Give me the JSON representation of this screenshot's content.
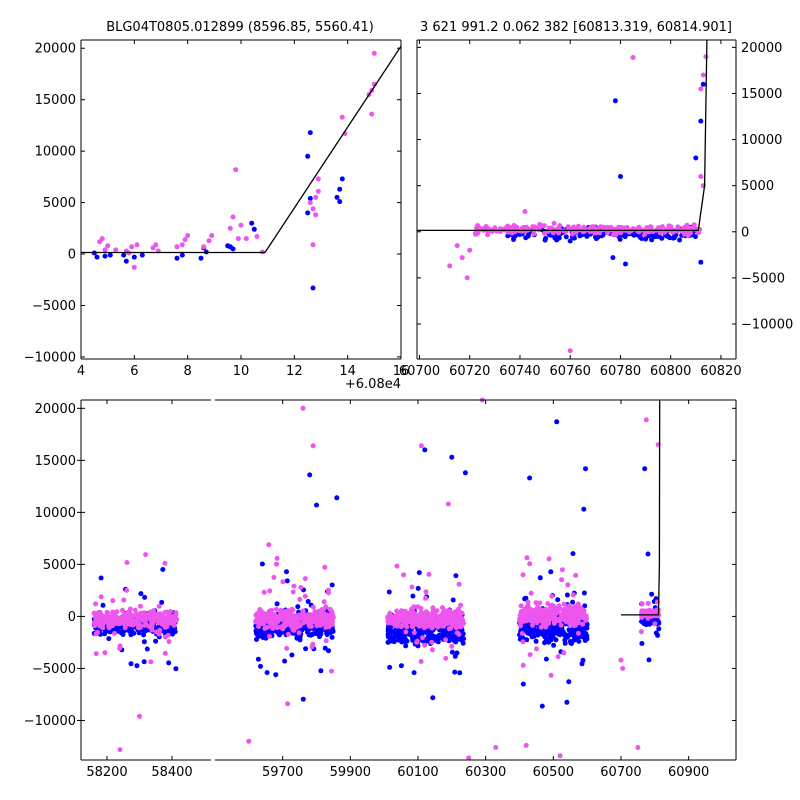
{
  "chart_data": [
    {
      "type": "scatter",
      "title": "BLG04T0805.012899 (8596.85, 5560.41)",
      "offset_label": "+6.08e4",
      "xlim": [
        4,
        16
      ],
      "ylim": [
        -10200,
        20800
      ],
      "xticks": [
        4,
        6,
        8,
        10,
        12,
        14,
        16
      ],
      "xtick_labels": [
        "4",
        "6",
        "8",
        "10",
        "12",
        "14",
        "16"
      ],
      "yticks": [
        -10000,
        -5000,
        0,
        5000,
        10000,
        15000,
        20000
      ],
      "ytick_labels": [
        "−10000",
        "−5000",
        "0",
        "5000",
        "10000",
        "15000",
        "20000"
      ],
      "model_line": {
        "x": [
          4,
          10.9,
          16
        ],
        "y": [
          150,
          150,
          20200
        ]
      },
      "series": [
        {
          "name": "blue",
          "color": "#0000ff",
          "points": [
            [
              4.5,
              100
            ],
            [
              4.6,
              -300
            ],
            [
              4.9,
              -200
            ],
            [
              5.1,
              -100
            ],
            [
              5.6,
              -100
            ],
            [
              5.7,
              -700
            ],
            [
              6.0,
              -300
            ],
            [
              6.3,
              -100
            ],
            [
              7.6,
              -400
            ],
            [
              7.8,
              -100
            ],
            [
              8.5,
              -400
            ],
            [
              8.6,
              600
            ],
            [
              8.7,
              200
            ],
            [
              9.5,
              800
            ],
            [
              9.6,
              700
            ],
            [
              9.7,
              500
            ],
            [
              10.4,
              3000
            ],
            [
              10.5,
              2400
            ],
            [
              12.5,
              4000
            ],
            [
              12.5,
              9500
            ],
            [
              12.6,
              11800
            ],
            [
              12.6,
              5400
            ],
            [
              12.7,
              -3300
            ],
            [
              13.6,
              5500
            ],
            [
              13.7,
              6300
            ],
            [
              13.8,
              7300
            ],
            [
              13.7,
              5100
            ]
          ]
        },
        {
          "name": "magenta",
          "color": "#ee55ee",
          "points": [
            [
              4.7,
              1200
            ],
            [
              4.9,
              400
            ],
            [
              4.8,
              1500
            ],
            [
              5.0,
              800
            ],
            [
              5.3,
              400
            ],
            [
              5.7,
              300
            ],
            [
              5.8,
              100
            ],
            [
              5.9,
              700
            ],
            [
              6.0,
              -1300
            ],
            [
              6.1,
              900
            ],
            [
              6.7,
              600
            ],
            [
              6.8,
              900
            ],
            [
              6.9,
              300
            ],
            [
              7.6,
              700
            ],
            [
              7.8,
              900
            ],
            [
              7.9,
              1400
            ],
            [
              8.0,
              1800
            ],
            [
              8.6,
              700
            ],
            [
              8.8,
              1300
            ],
            [
              8.9,
              1800
            ],
            [
              9.6,
              2500
            ],
            [
              9.7,
              3600
            ],
            [
              9.8,
              8200
            ],
            [
              9.9,
              1500
            ],
            [
              10.0,
              2800
            ],
            [
              10.2,
              1500
            ],
            [
              10.6,
              1700
            ],
            [
              10.8,
              200
            ],
            [
              12.6,
              5000
            ],
            [
              12.7,
              4400
            ],
            [
              12.8,
              3800
            ],
            [
              12.7,
              900
            ],
            [
              12.9,
              6100
            ],
            [
              12.8,
              5500
            ],
            [
              12.9,
              7300
            ],
            [
              13.8,
              13300
            ],
            [
              13.9,
              11700
            ],
            [
              14.8,
              15500
            ],
            [
              14.9,
              15900
            ],
            [
              14.9,
              13600
            ],
            [
              15.0,
              16500
            ],
            [
              15.0,
              19500
            ]
          ]
        }
      ]
    },
    {
      "type": "scatter",
      "title": "3 621 991.2 0.062 382 [60813.319, 60814.901]",
      "xlim": [
        60699,
        60826
      ],
      "ylim": [
        -13800,
        20800
      ],
      "xticks": [
        60700,
        60720,
        60740,
        60760,
        60780,
        60800,
        60820
      ],
      "xtick_labels": [
        "60700",
        "60720",
        "60740",
        "60760",
        "60780",
        "60800",
        "60820"
      ],
      "yticks": [
        -10000,
        -5000,
        0,
        5000,
        10000,
        15000,
        20000
      ],
      "ytick_labels": [
        "−10000",
        "−5000",
        "0",
        "5000",
        "10000",
        "15000",
        "20000"
      ],
      "model_line": {
        "x": [
          60699,
          60811,
          60813.5,
          60814.4
        ],
        "y": [
          150,
          150,
          5000,
          20800
        ]
      },
      "series": [
        {
          "name": "blue",
          "color": "#0000ff",
          "points": [
            [
              60778,
              14200
            ],
            [
              60780,
              6000
            ],
            [
              60810,
              8000
            ],
            [
              60812,
              12000
            ],
            [
              60813,
              16000
            ],
            [
              60812,
              -3300
            ],
            [
              60777,
              -2800
            ],
            [
              60782,
              -3500
            ],
            [
              60760,
              -1000
            ],
            [
              60790,
              -800
            ],
            [
              60750,
              -900
            ]
          ]
        },
        {
          "name": "magenta",
          "color": "#ee55ee",
          "points": [
            [
              60785,
              18900
            ],
            [
              60760,
              -12900
            ],
            [
              60712,
              -3700
            ],
            [
              60715,
              -1500
            ],
            [
              60717,
              -2800
            ],
            [
              60719,
              -5000
            ],
            [
              60720,
              -2000
            ],
            [
              60742,
              2200
            ],
            [
              60812,
              15500
            ],
            [
              60813,
              17000
            ],
            [
              60814,
              19000
            ],
            [
              60812,
              6000
            ],
            [
              60813,
              5000
            ]
          ]
        }
      ],
      "dense_bands": [
        {
          "color": "#0000ff",
          "x_range": [
            60735,
            60810
          ],
          "y_center": -200,
          "y_spread": 600,
          "count": 170
        },
        {
          "color": "#ee55ee",
          "x_range": [
            60722,
            60812
          ],
          "y_center": 250,
          "y_spread": 500,
          "count": 220
        }
      ]
    },
    {
      "type": "scatter",
      "title": "",
      "ylim": [
        -13800,
        20800
      ],
      "yticks": [
        -10000,
        -5000,
        0,
        5000,
        10000,
        15000,
        20000
      ],
      "ytick_labels": [
        "−10000",
        "−5000",
        "0",
        "5000",
        "10000",
        "15000",
        "20000"
      ],
      "segments": [
        {
          "xlim": [
            58120,
            58520
          ],
          "xticks": [
            58200,
            58400
          ],
          "xtick_labels": [
            "58200",
            "58400"
          ]
        },
        {
          "xlim": [
            59500,
            61040
          ],
          "xticks": [
            59700,
            59900,
            60100,
            60300,
            60500,
            60700,
            60900
          ],
          "xtick_labels": [
            "59700",
            "59900",
            "60100",
            "60300",
            "60500",
            "60700",
            "60900"
          ]
        }
      ],
      "model_line": {
        "x": [
          60700,
          60811,
          60813.5,
          60814.5
        ],
        "y": [
          150,
          150,
          5000,
          20800
        ]
      },
      "seasons": [
        {
          "x_range": [
            58160,
            58415
          ],
          "blue_center": -800,
          "magenta_center": -300,
          "spread": 1000,
          "count": 260,
          "outlier_spread": 5000
        },
        {
          "x_range": [
            59620,
            59850
          ],
          "blue_center": -800,
          "magenta_center": -200,
          "spread": 1100,
          "count": 300,
          "outlier_spread": 6000
        },
        {
          "x_range": [
            60010,
            60235
          ],
          "blue_center": -1500,
          "magenta_center": -200,
          "spread": 1200,
          "count": 300,
          "outlier_spread": 7000
        },
        {
          "x_range": [
            60400,
            60600
          ],
          "blue_center": -1200,
          "magenta_center": 100,
          "spread": 1200,
          "count": 280,
          "outlier_spread": 6500
        },
        {
          "x_range": [
            60760,
            60812
          ],
          "blue_center": -300,
          "magenta_center": 300,
          "spread": 500,
          "count": 60,
          "outlier_spread": 3000
        }
      ],
      "series": [
        {
          "name": "blue",
          "color": "#0000ff",
          "points": [
            [
              60510,
              18700
            ],
            [
              60770,
              14200
            ],
            [
              60780,
              6000
            ],
            [
              59780,
              13600
            ],
            [
              59800,
              10700
            ],
            [
              59860,
              11400
            ],
            [
              60120,
              16000
            ],
            [
              60200,
              15300
            ],
            [
              60240,
              13800
            ],
            [
              60430,
              13300
            ],
            [
              60595,
              14200
            ],
            [
              60590,
              10300
            ]
          ]
        },
        {
          "name": "magenta",
          "color": "#ee55ee",
          "points": [
            [
              59760,
              20000
            ],
            [
              59790,
              16400
            ],
            [
              60290,
              20800
            ],
            [
              60110,
              16400
            ],
            [
              60190,
              10800
            ],
            [
              60775,
              18900
            ],
            [
              60810,
              16500
            ],
            [
              60700,
              -4200
            ],
            [
              60705,
              -5000
            ],
            [
              60750,
              -12600
            ],
            [
              58240,
              -12800
            ],
            [
              59600,
              -12000
            ],
            [
              60330,
              -12600
            ],
            [
              60420,
              -12400
            ],
            [
              60520,
              -13400
            ],
            [
              60250,
              -13600
            ],
            [
              58300,
              -9600
            ]
          ]
        }
      ]
    }
  ]
}
